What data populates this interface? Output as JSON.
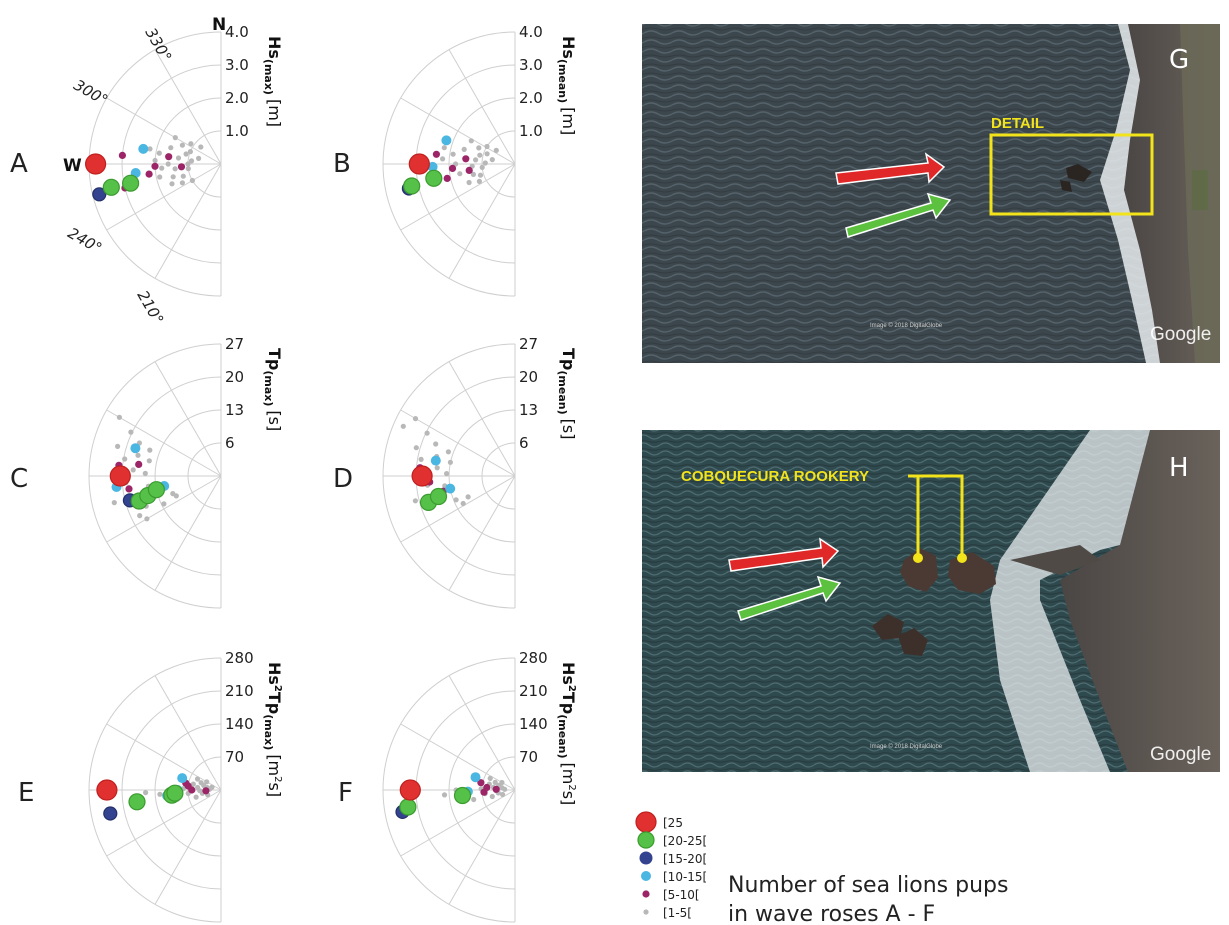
{
  "chart_data": [
    {
      "type": "polar-scatter",
      "panel": "A",
      "quantity": "Hs",
      "subscript": "(max)",
      "unit": "[m]",
      "radial_ticks": [
        "4.0",
        "3.0",
        "2.0",
        "1.0"
      ],
      "rmax": 4.0,
      "direction_labels": [
        "330°",
        "300°",
        "240°",
        "210°"
      ],
      "cardinal_labels": [
        "N",
        "W"
      ],
      "points": [
        {
          "dir": 270,
          "r": 3.8,
          "cls": "25"
        },
        {
          "dir": 256,
          "r": 3.8,
          "cls": "15-20"
        },
        {
          "dir": 258,
          "r": 3.4,
          "cls": "20-25"
        },
        {
          "dir": 258,
          "r": 2.8,
          "cls": "20-25"
        },
        {
          "dir": 281,
          "r": 2.4,
          "cls": "10-15"
        },
        {
          "dir": 264,
          "r": 2.6,
          "cls": "10-15"
        },
        {
          "dir": 256,
          "r": 3.0,
          "cls": "5-10"
        },
        {
          "dir": 275,
          "r": 3.0,
          "cls": "5-10"
        },
        {
          "dir": 262,
          "r": 2.2,
          "cls": "5-10"
        },
        {
          "dir": 268,
          "r": 2.0,
          "cls": "5-10"
        },
        {
          "dir": 278,
          "r": 1.6,
          "cls": "5-10"
        },
        {
          "dir": 266,
          "r": 1.2,
          "cls": "5-10"
        },
        {
          "dir": 300,
          "r": 1.6,
          "cls": "1-5"
        },
        {
          "dir": 296,
          "r": 1.3,
          "cls": "1-5"
        },
        {
          "dir": 292,
          "r": 1.0,
          "cls": "1-5"
        },
        {
          "dir": 288,
          "r": 1.6,
          "cls": "1-5"
        },
        {
          "dir": 286,
          "r": 1.1,
          "cls": "1-5"
        },
        {
          "dir": 284,
          "r": 0.7,
          "cls": "1-5"
        },
        {
          "dir": 280,
          "r": 1.9,
          "cls": "1-5"
        },
        {
          "dir": 278,
          "r": 1.3,
          "cls": "1-5"
        },
        {
          "dir": 276,
          "r": 0.9,
          "cls": "1-5"
        },
        {
          "dir": 273,
          "r": 2.0,
          "cls": "1-5"
        },
        {
          "dir": 270,
          "r": 1.6,
          "cls": "1-5"
        },
        {
          "dir": 270,
          "r": 1.0,
          "cls": "1-5"
        },
        {
          "dir": 266,
          "r": 1.8,
          "cls": "1-5"
        },
        {
          "dir": 264,
          "r": 1.4,
          "cls": "1-5"
        },
        {
          "dir": 262,
          "r": 1.0,
          "cls": "1-5"
        },
        {
          "dir": 258,
          "r": 1.9,
          "cls": "1-5"
        },
        {
          "dir": 255,
          "r": 1.5,
          "cls": "1-5"
        },
        {
          "dir": 252,
          "r": 1.2,
          "cls": "1-5"
        },
        {
          "dir": 248,
          "r": 1.6,
          "cls": "1-5"
        },
        {
          "dir": 244,
          "r": 1.3,
          "cls": "1-5"
        },
        {
          "dir": 240,
          "r": 1.0,
          "cls": "1-5"
        },
        {
          "dir": 304,
          "r": 1.1,
          "cls": "1-5"
        },
        {
          "dir": 310,
          "r": 0.8,
          "cls": "1-5"
        },
        {
          "dir": 282,
          "r": 2.2,
          "cls": "1-5"
        }
      ]
    },
    {
      "type": "polar-scatter",
      "panel": "B",
      "quantity": "Hs",
      "subscript": "(mean)",
      "unit": "[m]",
      "radial_ticks": [
        "4.0",
        "3.0",
        "2.0",
        "1.0"
      ],
      "rmax": 4.0,
      "direction_labels": [],
      "cardinal_labels": [],
      "points": [
        {
          "dir": 270,
          "r": 2.9,
          "cls": "25"
        },
        {
          "dir": 257,
          "r": 3.3,
          "cls": "15-20"
        },
        {
          "dir": 258,
          "r": 3.2,
          "cls": "20-25"
        },
        {
          "dir": 260,
          "r": 2.5,
          "cls": "20-25"
        },
        {
          "dir": 289,
          "r": 2.2,
          "cls": "10-15"
        },
        {
          "dir": 268,
          "r": 2.5,
          "cls": "10-15"
        },
        {
          "dir": 277,
          "r": 2.4,
          "cls": "5-10"
        },
        {
          "dir": 266,
          "r": 1.9,
          "cls": "5-10"
        },
        {
          "dir": 258,
          "r": 2.1,
          "cls": "5-10"
        },
        {
          "dir": 276,
          "r": 1.5,
          "cls": "5-10"
        },
        {
          "dir": 262,
          "r": 1.4,
          "cls": "5-10"
        },
        {
          "dir": 298,
          "r": 1.5,
          "cls": "1-5"
        },
        {
          "dir": 294,
          "r": 1.2,
          "cls": "1-5"
        },
        {
          "dir": 290,
          "r": 0.9,
          "cls": "1-5"
        },
        {
          "dir": 286,
          "r": 1.6,
          "cls": "1-5"
        },
        {
          "dir": 284,
          "r": 1.1,
          "cls": "1-5"
        },
        {
          "dir": 281,
          "r": 0.7,
          "cls": "1-5"
        },
        {
          "dir": 279,
          "r": 1.9,
          "cls": "1-5"
        },
        {
          "dir": 276,
          "r": 1.2,
          "cls": "1-5"
        },
        {
          "dir": 272,
          "r": 0.9,
          "cls": "1-5"
        },
        {
          "dir": 270,
          "r": 1.8,
          "cls": "1-5"
        },
        {
          "dir": 267,
          "r": 1.3,
          "cls": "1-5"
        },
        {
          "dir": 264,
          "r": 1.0,
          "cls": "1-5"
        },
        {
          "dir": 260,
          "r": 1.7,
          "cls": "1-5"
        },
        {
          "dir": 256,
          "r": 1.3,
          "cls": "1-5"
        },
        {
          "dir": 252,
          "r": 1.1,
          "cls": "1-5"
        },
        {
          "dir": 248,
          "r": 1.5,
          "cls": "1-5"
        },
        {
          "dir": 244,
          "r": 1.2,
          "cls": "1-5"
        },
        {
          "dir": 302,
          "r": 1.0,
          "cls": "1-5"
        },
        {
          "dir": 306,
          "r": 0.7,
          "cls": "1-5"
        },
        {
          "dir": 283,
          "r": 2.2,
          "cls": "1-5"
        },
        {
          "dir": 274,
          "r": 2.2,
          "cls": "1-5"
        }
      ]
    },
    {
      "type": "polar-scatter",
      "panel": "C",
      "quantity": "Tp",
      "subscript": "(max)",
      "unit": "[s]",
      "radial_ticks": [
        "27",
        "20",
        "13",
        "6"
      ],
      "rmax": 27,
      "direction_labels": [],
      "cardinal_labels": [],
      "points": [
        {
          "dir": 270,
          "r": 20.6,
          "cls": "25"
        },
        {
          "dir": 253,
          "r": 17.5,
          "cls": "20-25"
        },
        {
          "dir": 255,
          "r": 15.5,
          "cls": "20-25"
        },
        {
          "dir": 258,
          "r": 13.5,
          "cls": "20-25"
        },
        {
          "dir": 255,
          "r": 19.3,
          "cls": "15-20"
        },
        {
          "dir": 264,
          "r": 21.5,
          "cls": "10-15"
        },
        {
          "dir": 288,
          "r": 18.4,
          "cls": "10-15"
        },
        {
          "dir": 260,
          "r": 11.8,
          "cls": "10-15"
        },
        {
          "dir": 276,
          "r": 21.0,
          "cls": "5-10"
        },
        {
          "dir": 262,
          "r": 19.0,
          "cls": "5-10"
        },
        {
          "dir": 254,
          "r": 14.0,
          "cls": "5-10"
        },
        {
          "dir": 278,
          "r": 17.0,
          "cls": "5-10"
        },
        {
          "dir": 300,
          "r": 24.0,
          "cls": "1-5"
        },
        {
          "dir": 296,
          "r": 20.5,
          "cls": "1-5"
        },
        {
          "dir": 292,
          "r": 18.0,
          "cls": "1-5"
        },
        {
          "dir": 290,
          "r": 15.5,
          "cls": "1-5"
        },
        {
          "dir": 286,
          "r": 22.0,
          "cls": "1-5"
        },
        {
          "dir": 284,
          "r": 17.5,
          "cls": "1-5"
        },
        {
          "dir": 282,
          "r": 15.0,
          "cls": "1-5"
        },
        {
          "dir": 280,
          "r": 20.0,
          "cls": "1-5"
        },
        {
          "dir": 274,
          "r": 18.0,
          "cls": "1-5"
        },
        {
          "dir": 272,
          "r": 15.5,
          "cls": "1-5"
        },
        {
          "dir": 266,
          "r": 19.5,
          "cls": "1-5"
        },
        {
          "dir": 262,
          "r": 15.0,
          "cls": "1-5"
        },
        {
          "dir": 256,
          "r": 22.5,
          "cls": "1-5"
        },
        {
          "dir": 252,
          "r": 19.0,
          "cls": "1-5"
        },
        {
          "dir": 248,
          "r": 16.5,
          "cls": "1-5"
        },
        {
          "dir": 244,
          "r": 13.0,
          "cls": "1-5"
        },
        {
          "dir": 244,
          "r": 18.5,
          "cls": "1-5"
        },
        {
          "dir": 250,
          "r": 10.5,
          "cls": "1-5"
        },
        {
          "dir": 246,
          "r": 10.0,
          "cls": "1-5"
        },
        {
          "dir": 240,
          "r": 17.5,
          "cls": "1-5"
        }
      ]
    },
    {
      "type": "polar-scatter",
      "panel": "D",
      "quantity": "Tp",
      "subscript": "(mean)",
      "unit": "[s]",
      "radial_ticks": [
        "27",
        "20",
        "13",
        "6"
      ],
      "rmax": 27,
      "direction_labels": [],
      "cardinal_labels": [],
      "points": [
        {
          "dir": 270,
          "r": 19.0,
          "cls": "25"
        },
        {
          "dir": 253,
          "r": 18.5,
          "cls": "20-25"
        },
        {
          "dir": 255,
          "r": 16.2,
          "cls": "20-25"
        },
        {
          "dir": 259,
          "r": 13.5,
          "cls": "10-15"
        },
        {
          "dir": 281,
          "r": 16.5,
          "cls": "10-15"
        },
        {
          "dir": 275,
          "r": 19.5,
          "cls": "5-10"
        },
        {
          "dir": 266,
          "r": 17.5,
          "cls": "5-10"
        },
        {
          "dir": 258,
          "r": 15.0,
          "cls": "5-10"
        },
        {
          "dir": 300,
          "r": 23.5,
          "cls": "1-5"
        },
        {
          "dir": 296,
          "r": 20.0,
          "cls": "1-5"
        },
        {
          "dir": 292,
          "r": 17.5,
          "cls": "1-5"
        },
        {
          "dir": 290,
          "r": 14.5,
          "cls": "1-5"
        },
        {
          "dir": 286,
          "r": 21.0,
          "cls": "1-5"
        },
        {
          "dir": 284,
          "r": 16.5,
          "cls": "1-5"
        },
        {
          "dir": 282,
          "r": 13.5,
          "cls": "1-5"
        },
        {
          "dir": 280,
          "r": 19.5,
          "cls": "1-5"
        },
        {
          "dir": 276,
          "r": 16.0,
          "cls": "1-5"
        },
        {
          "dir": 272,
          "r": 14.0,
          "cls": "1-5"
        },
        {
          "dir": 264,
          "r": 18.0,
          "cls": "1-5"
        },
        {
          "dir": 262,
          "r": 14.5,
          "cls": "1-5"
        },
        {
          "dir": 256,
          "r": 21.0,
          "cls": "1-5"
        },
        {
          "dir": 252,
          "r": 16.0,
          "cls": "1-5"
        },
        {
          "dir": 248,
          "r": 13.0,
          "cls": "1-5"
        },
        {
          "dir": 246,
          "r": 10.5,
          "cls": "1-5"
        },
        {
          "dir": 242,
          "r": 12.0,
          "cls": "1-5"
        },
        {
          "dir": 294,
          "r": 25.0,
          "cls": "1-5"
        }
      ]
    },
    {
      "type": "polar-scatter",
      "panel": "E",
      "quantity": "Hs",
      "subscript": "(max)",
      "unit": "[m",
      "unit_sup": "2",
      "unit_tail": "s]",
      "radial_ticks": [
        "280",
        "210",
        "140",
        "70"
      ],
      "rmax": 280,
      "direction_labels": [],
      "cardinal_labels": [],
      "points": [
        {
          "dir": 270,
          "r": 242,
          "cls": "25"
        },
        {
          "dir": 258,
          "r": 240,
          "cls": "15-20"
        },
        {
          "dir": 262,
          "r": 180,
          "cls": "20-25"
        },
        {
          "dir": 264,
          "r": 105,
          "cls": "20-25"
        },
        {
          "dir": 266,
          "r": 98,
          "cls": "20-25"
        },
        {
          "dir": 287,
          "r": 86,
          "cls": "10-15"
        },
        {
          "dir": 264,
          "r": 115,
          "cls": "10-15"
        },
        {
          "dir": 270,
          "r": 92,
          "cls": "10-15"
        },
        {
          "dir": 281,
          "r": 76,
          "cls": "5-10"
        },
        {
          "dir": 277,
          "r": 70,
          "cls": "5-10"
        },
        {
          "dir": 270,
          "r": 62,
          "cls": "5-10"
        },
        {
          "dir": 262,
          "r": 108,
          "cls": "5-10"
        },
        {
          "dir": 267,
          "r": 32,
          "cls": "5-10"
        },
        {
          "dir": 295,
          "r": 55,
          "cls": "1-5"
        },
        {
          "dir": 290,
          "r": 45,
          "cls": "1-5"
        },
        {
          "dir": 285,
          "r": 38,
          "cls": "1-5"
        },
        {
          "dir": 282,
          "r": 60,
          "cls": "1-5"
        },
        {
          "dir": 280,
          "r": 30,
          "cls": "1-5"
        },
        {
          "dir": 276,
          "r": 50,
          "cls": "1-5"
        },
        {
          "dir": 274,
          "r": 24,
          "cls": "1-5"
        },
        {
          "dir": 272,
          "r": 80,
          "cls": "1-5"
        },
        {
          "dir": 268,
          "r": 45,
          "cls": "1-5"
        },
        {
          "dir": 266,
          "r": 130,
          "cls": "1-5"
        },
        {
          "dir": 264,
          "r": 70,
          "cls": "1-5"
        },
        {
          "dir": 260,
          "r": 40,
          "cls": "1-5"
        },
        {
          "dir": 258,
          "r": 95,
          "cls": "1-5"
        },
        {
          "dir": 254,
          "r": 55,
          "cls": "1-5"
        },
        {
          "dir": 250,
          "r": 30,
          "cls": "1-5"
        },
        {
          "dir": 268,
          "r": 160,
          "cls": "1-5"
        },
        {
          "dir": 288,
          "r": 20,
          "cls": "1-5"
        },
        {
          "dir": 300,
          "r": 35,
          "cls": "1-5"
        }
      ]
    },
    {
      "type": "polar-scatter",
      "panel": "F",
      "quantity": "Hs",
      "subscript": "(mean)",
      "unit": "[m",
      "unit_sup": "2",
      "unit_tail": "s]",
      "radial_ticks": [
        "280",
        "210",
        "140",
        "70"
      ],
      "rmax": 280,
      "direction_labels": [],
      "cardinal_labels": [],
      "points": [
        {
          "dir": 270,
          "r": 222,
          "cls": "25"
        },
        {
          "dir": 259,
          "r": 243,
          "cls": "15-20"
        },
        {
          "dir": 261,
          "r": 230,
          "cls": "20-25"
        },
        {
          "dir": 264,
          "r": 112,
          "cls": "20-25"
        },
        {
          "dir": 288,
          "r": 88,
          "cls": "10-15"
        },
        {
          "dir": 268,
          "r": 100,
          "cls": "10-15"
        },
        {
          "dir": 282,
          "r": 74,
          "cls": "5-10"
        },
        {
          "dir": 275,
          "r": 60,
          "cls": "5-10"
        },
        {
          "dir": 266,
          "r": 66,
          "cls": "5-10"
        },
        {
          "dir": 272,
          "r": 40,
          "cls": "5-10"
        },
        {
          "dir": 295,
          "r": 58,
          "cls": "1-5"
        },
        {
          "dir": 291,
          "r": 45,
          "cls": "1-5"
        },
        {
          "dir": 286,
          "r": 36,
          "cls": "1-5"
        },
        {
          "dir": 283,
          "r": 56,
          "cls": "1-5"
        },
        {
          "dir": 280,
          "r": 28,
          "cls": "1-5"
        },
        {
          "dir": 277,
          "r": 46,
          "cls": "1-5"
        },
        {
          "dir": 274,
          "r": 22,
          "cls": "1-5"
        },
        {
          "dir": 272,
          "r": 72,
          "cls": "1-5"
        },
        {
          "dir": 268,
          "r": 40,
          "cls": "1-5"
        },
        {
          "dir": 266,
          "r": 150,
          "cls": "1-5"
        },
        {
          "dir": 263,
          "r": 64,
          "cls": "1-5"
        },
        {
          "dir": 260,
          "r": 36,
          "cls": "1-5"
        },
        {
          "dir": 257,
          "r": 90,
          "cls": "1-5"
        },
        {
          "dir": 254,
          "r": 50,
          "cls": "1-5"
        },
        {
          "dir": 250,
          "r": 28,
          "cls": "1-5"
        },
        {
          "dir": 300,
          "r": 32,
          "cls": "1-5"
        },
        {
          "dir": 270,
          "r": 125,
          "cls": "1-5"
        }
      ]
    }
  ],
  "classes": [
    {
      "key": "25",
      "label": "[25",
      "color": "#e03030",
      "size": 10
    },
    {
      "key": "20-25",
      "label": "[20-25[",
      "color": "#56c148",
      "size": 8
    },
    {
      "key": "15-20",
      "label": "[15-20[",
      "color": "#34438f",
      "size": 6.5
    },
    {
      "key": "10-15",
      "label": "[10-15[",
      "color": "#4ab6e2",
      "size": 5
    },
    {
      "key": "5-10",
      "label": "[5-10[",
      "color": "#9c2568",
      "size": 3.6
    },
    {
      "key": "1-5",
      "label": "[1-5[",
      "color": "#b8b8b8",
      "size": 2.6
    }
  ],
  "legend_caption": [
    "Number of sea lions pups",
    "in wave roses A - F"
  ],
  "photo_g": {
    "tag": "G",
    "callout": "DETAIL",
    "watermark": "Google",
    "credit": "Image © 2018 DigitalGlobe"
  },
  "photo_h": {
    "tag": "H",
    "callout": "COBQUECURA ROOKERY",
    "watermark": "Google",
    "credit": "Image © 2018 DigitalGlobe"
  },
  "colors": {
    "arrow_red": "#e02828",
    "arrow_green": "#5cc13e",
    "callout": "#f2e31b",
    "grid": "#cfcfcf",
    "sea": "#3f4a50",
    "land": "#5a5550"
  }
}
